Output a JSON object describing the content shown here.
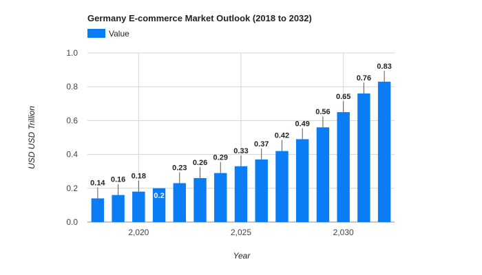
{
  "chart_data": {
    "type": "bar",
    "title": "Germany E-commerce Market Outlook (2018 to 2032)",
    "xlabel": "Year",
    "ylabel": "USD USD Trillion",
    "legend": {
      "position": "top-left",
      "entries": [
        "Value"
      ]
    },
    "grid": true,
    "xlim": [
      2017.5,
      2032.5
    ],
    "ylim": [
      0,
      1.0
    ],
    "x_ticks": [
      2020,
      2025,
      2030
    ],
    "x_tick_labels": [
      "2,020",
      "2,025",
      "2,030"
    ],
    "y_ticks": [
      0,
      0.2,
      0.4,
      0.6,
      0.8,
      1.0
    ],
    "y_tick_labels": [
      "0.0",
      "0.2",
      "0.4",
      "0.6",
      "0.8",
      "1.0"
    ],
    "x": [
      2018,
      2019,
      2020,
      2021,
      2022,
      2023,
      2024,
      2025,
      2026,
      2027,
      2028,
      2029,
      2030,
      2031,
      2032
    ],
    "series": [
      {
        "name": "Value",
        "color": "#0a7cf4",
        "values": [
          0.14,
          0.16,
          0.18,
          0.2,
          0.23,
          0.26,
          0.29,
          0.33,
          0.37,
          0.42,
          0.49,
          0.56,
          0.65,
          0.76,
          0.83
        ],
        "labels": [
          "0.14",
          "0.16",
          "0.18",
          "0.2",
          "0.23",
          "0.26",
          "0.29",
          "0.33",
          "0.37",
          "0.42",
          "0.49",
          "0.56",
          "0.65",
          "0.76",
          "0.83"
        ]
      }
    ]
  }
}
